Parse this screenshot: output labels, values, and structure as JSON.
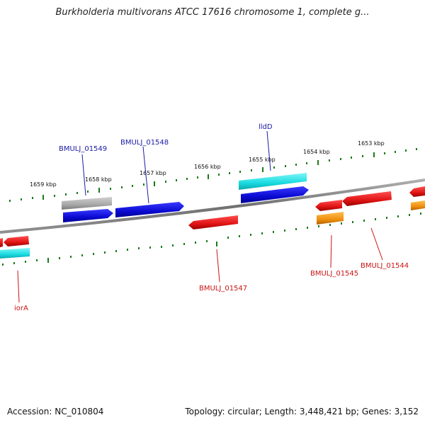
{
  "title": "Burkholderia multivorans ATCC 17616 chromosome 1, complete g...",
  "footer": {
    "accession": "Accession: NC_010804",
    "summary": "Topology: circular; Length: 3,448,421 bp; Genes: 3,152"
  },
  "ticks": [
    "1659 kbp",
    "1658 kbp",
    "1657 kbp",
    "1656 kbp",
    "1655 kbp",
    "1654 kbp",
    "1653 kbp"
  ],
  "gene_labels": {
    "bmulj_01549": "BMULJ_01549",
    "bmulj_01548": "BMULJ_01548",
    "lldd": "lldD",
    "bmulj_01547": "BMULJ_01547",
    "bmulj_01545": "BMULJ_01545",
    "bmulj_01544": "BMULJ_01544",
    "iora": "iorA"
  },
  "colors": {
    "backbone": "#808080",
    "tick": "#1a7a1a",
    "cds_blue": "#1414d2",
    "cds_cyan": "#19dbe0",
    "cds_gray": "#a8a8a8",
    "cds_red": "#e01414",
    "cds_orange": "#f09010"
  }
}
